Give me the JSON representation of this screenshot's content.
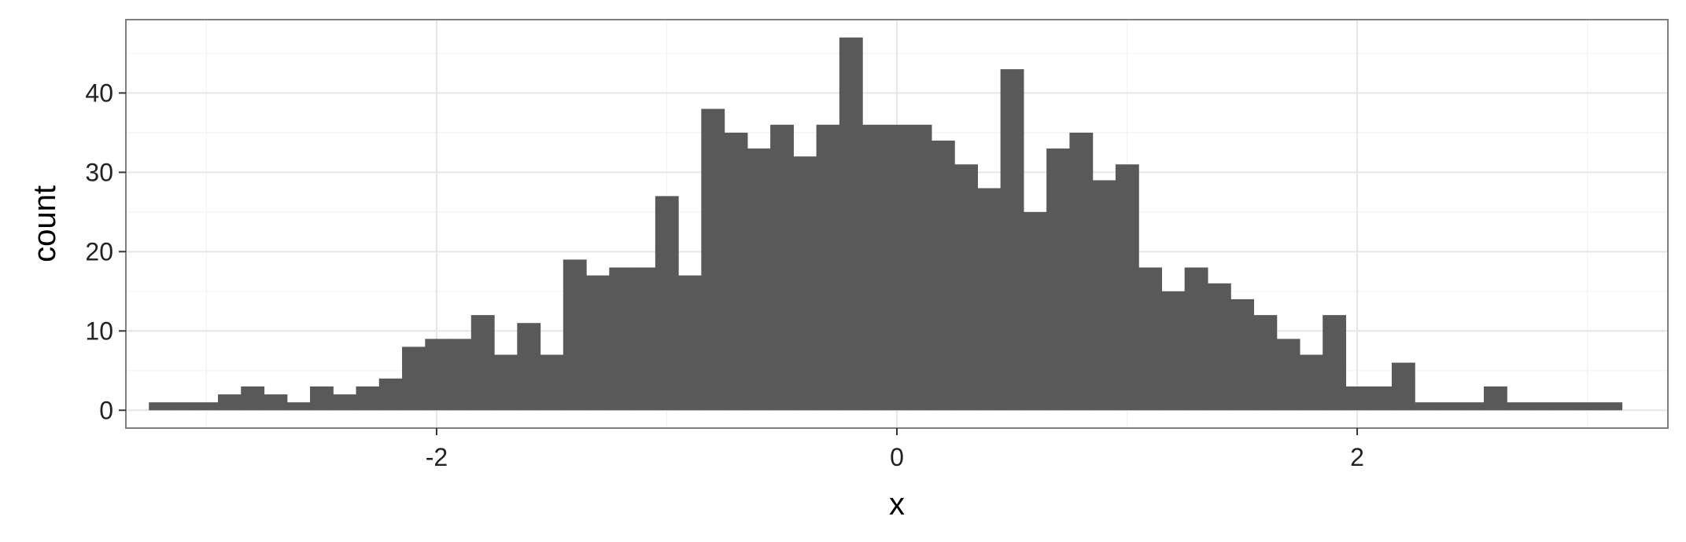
{
  "chart_data": {
    "type": "bar",
    "subtype": "histogram",
    "title": "",
    "xlabel": "x",
    "ylabel": "count",
    "xlim": [
      -3.35,
      3.35
    ],
    "ylim": [
      -2.25,
      49.25
    ],
    "x_ticks": [
      -2,
      0,
      2
    ],
    "x_tick_labels": [
      "-2",
      "0",
      "2"
    ],
    "y_ticks": [
      0,
      10,
      20,
      30,
      40
    ],
    "y_tick_labels": [
      "0",
      "10",
      "20",
      "30",
      "40"
    ],
    "grid": true,
    "theme": "bw",
    "bar_color": "#595959",
    "bin_width": 0.1,
    "bin_start": -3.25,
    "counts": [
      1,
      1,
      1,
      2,
      3,
      2,
      1,
      3,
      2,
      3,
      4,
      8,
      9,
      9,
      12,
      7,
      11,
      7,
      19,
      17,
      18,
      18,
      27,
      17,
      38,
      35,
      33,
      36,
      32,
      36,
      47,
      36,
      36,
      36,
      34,
      31,
      28,
      43,
      25,
      33,
      35,
      29,
      31,
      18,
      15,
      18,
      16,
      14,
      12,
      9,
      7,
      12,
      3,
      3,
      6,
      1,
      1,
      1,
      3,
      1,
      1,
      1,
      1,
      1
    ]
  }
}
